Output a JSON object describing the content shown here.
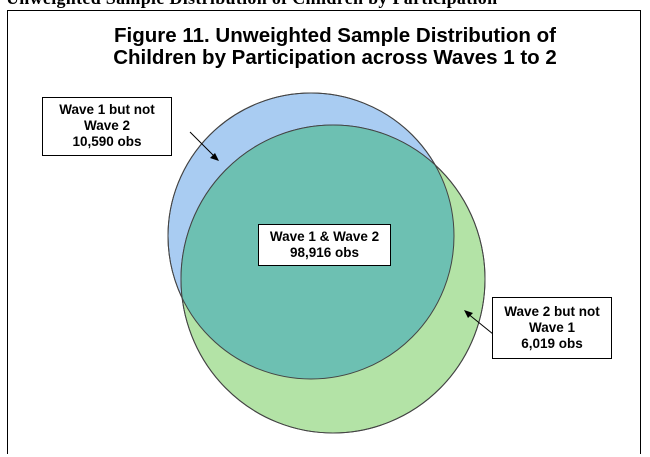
{
  "caption": {
    "text": "Unweighted Sample Distribution of Children by Participation"
  },
  "title": {
    "line1": "Figure 11. Unweighted Sample Distribution of",
    "line2": "Children by Participation across Waves 1 to 2"
  },
  "sets": {
    "wave1_only": {
      "line1": "Wave 1 but not",
      "line2": "Wave 2",
      "count": "10,590 obs"
    },
    "both": {
      "line1": "Wave 1 & Wave 2",
      "count": "98,916 obs"
    },
    "wave2_only": {
      "line1": "Wave 2 but not",
      "line2": "Wave 1",
      "count": "6,019 obs"
    }
  },
  "colors": {
    "wave1_circle": "#a9ccf2",
    "wave2_circle": "#b3e3a6",
    "overlap": "#6dc0b2",
    "outline": "#444444"
  }
}
